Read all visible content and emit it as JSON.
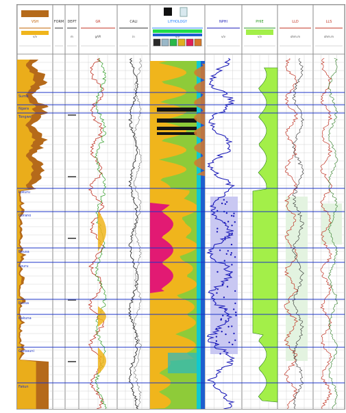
{
  "header": {
    "tracks": [
      {
        "id": "lith",
        "name": "VSH",
        "unit": "v/v",
        "color": "#c06000"
      },
      {
        "id": "tops",
        "name": "FORM",
        "unit": "",
        "color": "#303030"
      },
      {
        "id": "depth",
        "name": "DEPT",
        "unit": "m",
        "color": "#303030"
      },
      {
        "id": "gr",
        "name": "GR",
        "unit": "gAPI",
        "color": "#c03020"
      },
      {
        "id": "cali",
        "name": "CALI",
        "unit": "in",
        "color": "#303030"
      },
      {
        "id": "mineral",
        "name": "LITHOLOGY",
        "unit": "v/v",
        "color": "#2080ff"
      },
      {
        "id": "nphi",
        "name": "NPHI",
        "unit": "v/v",
        "color": "#1a1ab8"
      },
      {
        "id": "phie",
        "name": "PHIE",
        "unit": "v/v",
        "color": "#2a9a20"
      },
      {
        "id": "res1",
        "name": "LLD",
        "unit": "ohm.m",
        "color": "#c03020"
      },
      {
        "id": "res2",
        "name": "LLS",
        "unit": "ohm.m",
        "color": "#c03020"
      }
    ],
    "mineral_legend": [
      "#2a2a2a",
      "#9ab8c8",
      "#2ab84a",
      "#e0b020",
      "#e01e5a",
      "#d8792a"
    ]
  },
  "formation_tops": [
    {
      "label": "Sumb"
    },
    {
      "label": "Ngara"
    },
    {
      "label": "Tongwe"
    },
    {
      "label": "Lokuru"
    },
    {
      "label": "Gorano"
    },
    {
      "label": "Neusa"
    },
    {
      "label": "Kouru"
    },
    {
      "label": "Ravsa"
    },
    {
      "label": "Bakuna"
    },
    {
      "label": "Garbauni"
    },
    {
      "label": "Fakun"
    }
  ],
  "colors": {
    "grid": "#c8c8c8",
    "top_line": "#1b33c8",
    "shale_fill": "#b56a1a",
    "sand_fill": "#f0b51c",
    "green_bg": "#8ecb39",
    "cyan_band": "#10c8d0",
    "blue_edge": "#1f5ecf",
    "magenta_fill": "#e21a73",
    "lilac_fill": "#c9c8f2",
    "porosity_fill": "#a3ef49",
    "res_fill": "#e3f3e0"
  }
}
